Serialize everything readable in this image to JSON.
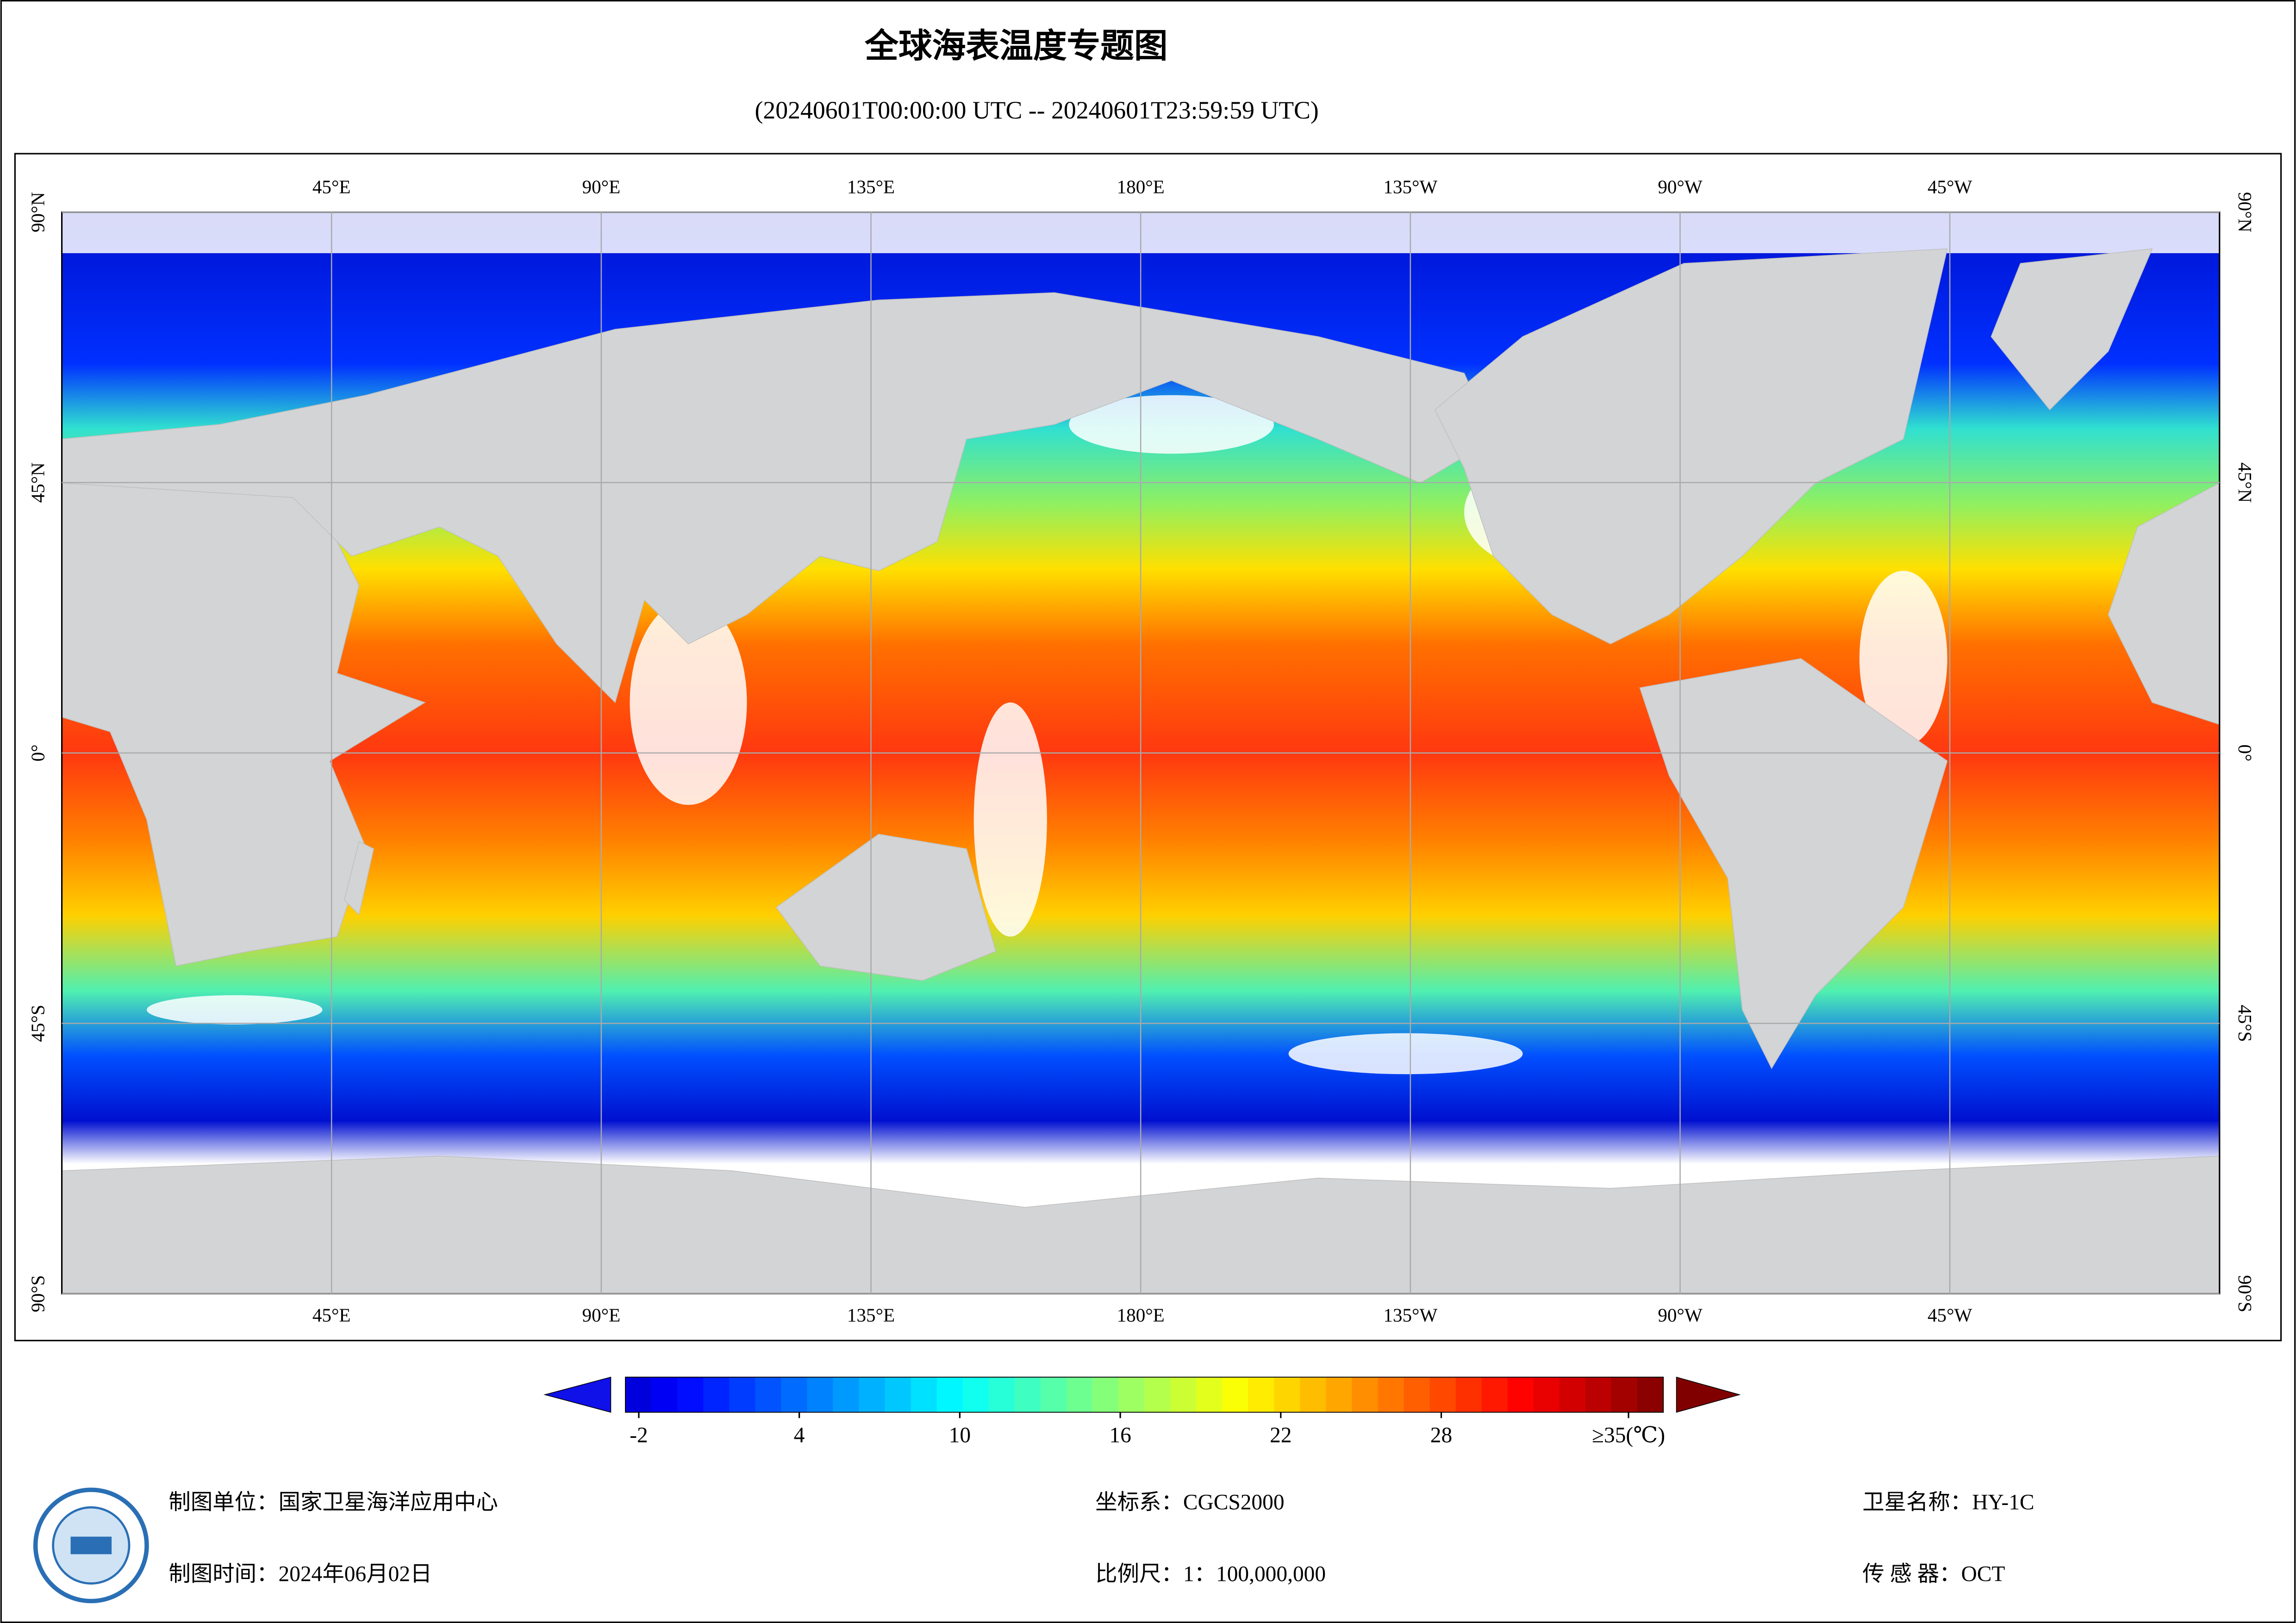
{
  "header": {
    "title": "全球海表温度专题图",
    "subtitle": "(20240601T00:00:00 UTC -- 20240601T23:59:59 UTC)"
  },
  "map": {
    "lon_range": [
      0,
      360
    ],
    "lat_range": [
      90,
      -90
    ],
    "lon_ticks": [
      {
        "value": 45,
        "label": "45°E"
      },
      {
        "value": 90,
        "label": "90°E"
      },
      {
        "value": 135,
        "label": "135°E"
      },
      {
        "value": 180,
        "label": "180°E"
      },
      {
        "value": 225,
        "label": "135°W"
      },
      {
        "value": 270,
        "label": "90°W"
      },
      {
        "value": 315,
        "label": "45°W"
      }
    ],
    "lat_ticks": [
      {
        "value": 90,
        "label": "90°N"
      },
      {
        "value": 45,
        "label": "45°N"
      },
      {
        "value": 0,
        "label": "0°"
      },
      {
        "value": -45,
        "label": "45°S"
      },
      {
        "value": -90,
        "label": "90°S"
      }
    ]
  },
  "colorbar": {
    "range": [
      -2.5,
      36.3
    ],
    "ticks": [
      -2,
      4,
      10,
      16,
      22,
      28,
      {
        "value": 35,
        "label": "≥35(℃)"
      }
    ]
  },
  "footer": {
    "unit": "制图单位：国家卫星海洋应用中心",
    "date": "制图时间：2024年06月02日",
    "crs": "坐标系：CGCS2000",
    "scale": "比例尺：1：100,000,000",
    "satellite": "卫星名称：HY-1C",
    "sensor": "传 感 器：OCT"
  }
}
